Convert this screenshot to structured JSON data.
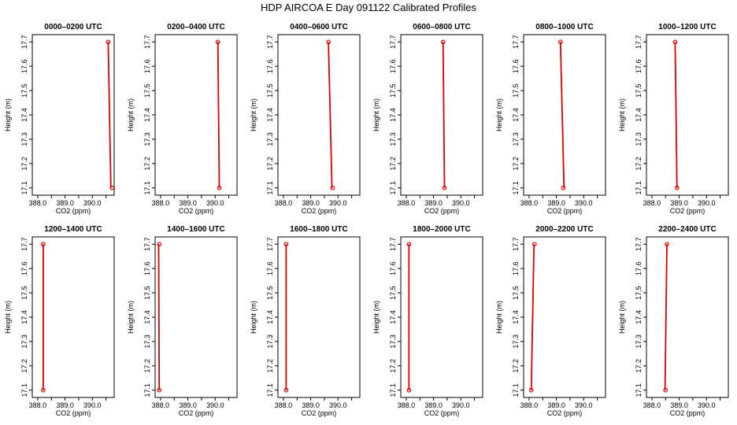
{
  "figure": {
    "title": "HDP AIRCOA E  Day 091122  Calibrated Profiles",
    "colors": {
      "profile": "#dd0000",
      "axis": "#000000",
      "background": "#ffffff"
    }
  },
  "chart_data": [
    {
      "type": "line",
      "title": "0000–0200 UTC",
      "xlabel": "CO2 (ppm)",
      "ylabel": "Height (m)",
      "xlim": [
        387.8,
        390.8
      ],
      "ylim": [
        17.07,
        17.73
      ],
      "xticks": [
        "388.0",
        "389.0",
        "390.0"
      ],
      "yticks": [
        "17.1",
        "17.2",
        "17.3",
        "17.4",
        "17.5",
        "17.6",
        "17.7"
      ],
      "series": [
        {
          "points": [
            [
              390.58,
              17.7
            ],
            [
              390.68,
              17.1
            ]
          ],
          "markers": [
            [
              390.58,
              17.7
            ],
            [
              390.72,
              17.1
            ]
          ]
        }
      ]
    },
    {
      "type": "line",
      "title": "0200–0400 UTC",
      "xlabel": "CO2 (ppm)",
      "ylabel": "Height (m)",
      "xlim": [
        387.8,
        390.8
      ],
      "ylim": [
        17.07,
        17.73
      ],
      "xticks": [
        "388.0",
        "389.0",
        "390.0"
      ],
      "yticks": [
        "17.1",
        "17.2",
        "17.3",
        "17.4",
        "17.5",
        "17.6",
        "17.7"
      ],
      "series": [
        {
          "points": [
            [
              390.1,
              17.7
            ],
            [
              390.15,
              17.1
            ]
          ],
          "markers": [
            [
              390.1,
              17.7
            ],
            [
              390.15,
              17.1
            ]
          ]
        }
      ]
    },
    {
      "type": "line",
      "title": "0400–0600 UTC",
      "xlabel": "CO2 (ppm)",
      "ylabel": "Height (m)",
      "xlim": [
        387.8,
        390.8
      ],
      "ylim": [
        17.07,
        17.73
      ],
      "xticks": [
        "388.0",
        "389.0",
        "390.0"
      ],
      "yticks": [
        "17.1",
        "17.2",
        "17.3",
        "17.4",
        "17.5",
        "17.6",
        "17.7"
      ],
      "series": [
        {
          "points": [
            [
              389.65,
              17.7
            ],
            [
              389.78,
              17.1
            ]
          ],
          "markers": [
            [
              389.65,
              17.7
            ],
            [
              389.8,
              17.1
            ]
          ]
        }
      ]
    },
    {
      "type": "line",
      "title": "0600–0800 UTC",
      "xlabel": "CO2 (ppm)",
      "ylabel": "Height (m)",
      "xlim": [
        387.8,
        390.8
      ],
      "ylim": [
        17.07,
        17.73
      ],
      "xticks": [
        "388.0",
        "389.0",
        "390.0"
      ],
      "yticks": [
        "17.1",
        "17.2",
        "17.3",
        "17.4",
        "17.5",
        "17.6",
        "17.7"
      ],
      "series": [
        {
          "points": [
            [
              389.35,
              17.7
            ],
            [
              389.4,
              17.1
            ]
          ],
          "markers": [
            [
              389.35,
              17.7
            ],
            [
              389.4,
              17.1
            ]
          ]
        }
      ]
    },
    {
      "type": "line",
      "title": "0800–1000 UTC",
      "xlabel": "CO2 (ppm)",
      "ylabel": "Height (m)",
      "xlim": [
        387.8,
        390.8
      ],
      "ylim": [
        17.07,
        17.73
      ],
      "xticks": [
        "388.0",
        "389.0",
        "390.0"
      ],
      "yticks": [
        "17.1",
        "17.2",
        "17.3",
        "17.4",
        "17.5",
        "17.6",
        "17.7"
      ],
      "series": [
        {
          "points": [
            [
              389.15,
              17.7
            ],
            [
              389.28,
              17.1
            ]
          ],
          "markers": [
            [
              389.15,
              17.7
            ],
            [
              389.25,
              17.1
            ]
          ]
        }
      ]
    },
    {
      "type": "line",
      "title": "1000–1200 UTC",
      "xlabel": "CO2 (ppm)",
      "ylabel": "Height (m)",
      "xlim": [
        387.8,
        390.8
      ],
      "ylim": [
        17.07,
        17.73
      ],
      "xticks": [
        "388.0",
        "389.0",
        "390.0"
      ],
      "yticks": [
        "17.1",
        "17.2",
        "17.3",
        "17.4",
        "17.5",
        "17.6",
        "17.7"
      ],
      "series": [
        {
          "points": [
            [
              388.85,
              17.7
            ],
            [
              388.92,
              17.1
            ]
          ],
          "markers": [
            [
              388.85,
              17.7
            ],
            [
              388.92,
              17.1
            ]
          ]
        }
      ]
    },
    {
      "type": "line",
      "title": "1200–1400 UTC",
      "xlabel": "CO2 (ppm)",
      "ylabel": "Height (m)",
      "xlim": [
        387.8,
        390.8
      ],
      "ylim": [
        17.07,
        17.73
      ],
      "xticks": [
        "388.0",
        "389.0",
        "390.0"
      ],
      "yticks": [
        "17.1",
        "17.2",
        "17.3",
        "17.4",
        "17.5",
        "17.6",
        "17.7"
      ],
      "series": [
        {
          "points": [
            [
              388.2,
              17.7
            ],
            [
              388.2,
              17.1
            ]
          ],
          "markers": [
            [
              388.2,
              17.7
            ],
            [
              388.2,
              17.1
            ]
          ]
        }
      ]
    },
    {
      "type": "line",
      "title": "1400–1600 UTC",
      "xlabel": "CO2 (ppm)",
      "ylabel": "Height (m)",
      "xlim": [
        387.8,
        390.8
      ],
      "ylim": [
        17.07,
        17.73
      ],
      "xticks": [
        "388.0",
        "389.0",
        "390.0"
      ],
      "yticks": [
        "17.1",
        "17.2",
        "17.3",
        "17.4",
        "17.5",
        "17.6",
        "17.7"
      ],
      "series": [
        {
          "points": [
            [
              387.93,
              17.7
            ],
            [
              387.95,
              17.1
            ]
          ],
          "markers": [
            [
              387.95,
              17.7
            ],
            [
              387.95,
              17.1
            ]
          ]
        }
      ]
    },
    {
      "type": "line",
      "title": "1600–1800 UTC",
      "xlabel": "CO2 (ppm)",
      "ylabel": "Height (m)",
      "xlim": [
        387.8,
        390.8
      ],
      "ylim": [
        17.07,
        17.73
      ],
      "xticks": [
        "388.0",
        "389.0",
        "390.0"
      ],
      "yticks": [
        "17.1",
        "17.2",
        "17.3",
        "17.4",
        "17.5",
        "17.6",
        "17.7"
      ],
      "series": [
        {
          "points": [
            [
              388.1,
              17.7
            ],
            [
              388.1,
              17.1
            ]
          ],
          "markers": [
            [
              388.1,
              17.7
            ],
            [
              388.1,
              17.1
            ]
          ]
        }
      ]
    },
    {
      "type": "line",
      "title": "1800–2000 UTC",
      "xlabel": "CO2 (ppm)",
      "ylabel": "Height (m)",
      "xlim": [
        387.8,
        390.8
      ],
      "ylim": [
        17.07,
        17.73
      ],
      "xticks": [
        "388.0",
        "389.0",
        "390.0"
      ],
      "yticks": [
        "17.1",
        "17.2",
        "17.3",
        "17.4",
        "17.5",
        "17.6",
        "17.7"
      ],
      "series": [
        {
          "points": [
            [
              388.1,
              17.7
            ],
            [
              388.1,
              17.1
            ]
          ],
          "markers": [
            [
              388.1,
              17.7
            ],
            [
              388.1,
              17.1
            ]
          ]
        }
      ]
    },
    {
      "type": "line",
      "title": "2000–2200 UTC",
      "xlabel": "CO2 (ppm)",
      "ylabel": "Height (m)",
      "xlim": [
        387.8,
        390.8
      ],
      "ylim": [
        17.07,
        17.73
      ],
      "xticks": [
        "388.0",
        "389.0",
        "390.0"
      ],
      "yticks": [
        "17.1",
        "17.2",
        "17.3",
        "17.4",
        "17.5",
        "17.6",
        "17.7"
      ],
      "series": [
        {
          "points": [
            [
              388.18,
              17.7
            ],
            [
              388.08,
              17.1
            ]
          ],
          "markers": [
            [
              388.2,
              17.7
            ],
            [
              388.08,
              17.1
            ]
          ]
        }
      ]
    },
    {
      "type": "line",
      "title": "2200–2400 UTC",
      "xlabel": "CO2 (ppm)",
      "ylabel": "Height (m)",
      "xlim": [
        387.8,
        390.8
      ],
      "ylim": [
        17.07,
        17.73
      ],
      "xticks": [
        "388.0",
        "389.0",
        "390.0"
      ],
      "yticks": [
        "17.1",
        "17.2",
        "17.3",
        "17.4",
        "17.5",
        "17.6",
        "17.7"
      ],
      "series": [
        {
          "points": [
            [
              388.55,
              17.7
            ],
            [
              388.48,
              17.1
            ]
          ],
          "markers": [
            [
              388.55,
              17.7
            ],
            [
              388.5,
              17.1
            ]
          ]
        }
      ]
    }
  ]
}
